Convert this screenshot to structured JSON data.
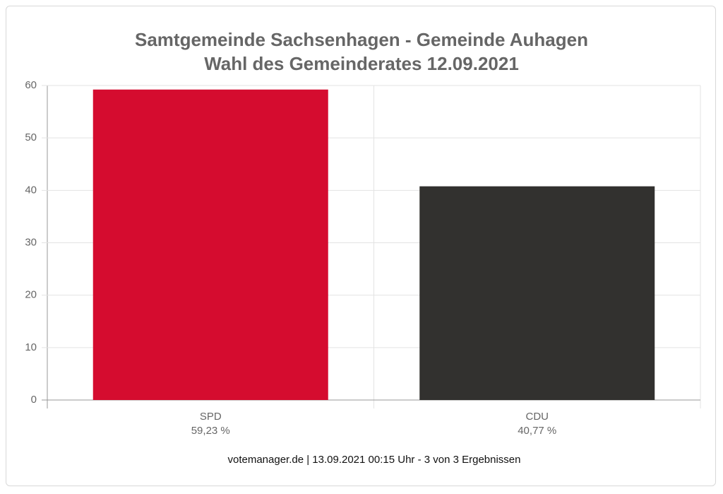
{
  "chart_data": {
    "type": "bar",
    "title": "Samtgemeinde Sachsenhagen - Gemeinde Auhagen",
    "subtitle": "Wahl des Gemeinderates 12.09.2021",
    "categories": [
      "SPD",
      "CDU"
    ],
    "values": [
      59.23,
      40.77
    ],
    "value_labels": [
      "59,23 %",
      "40,77 %"
    ],
    "colors": [
      "#d50c2f",
      "#32312f"
    ],
    "ylim": [
      0,
      60
    ],
    "yticks": [
      0,
      10,
      20,
      30,
      40,
      50,
      60
    ],
    "grid": true,
    "footer": "votemanager.de | 13.09.2021 00:15 Uhr - 3 von 3 Ergebnissen"
  }
}
